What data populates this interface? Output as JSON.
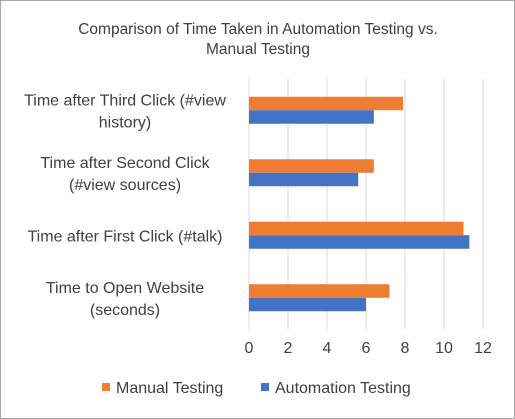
{
  "chart_data": {
    "type": "bar",
    "orientation": "horizontal",
    "title": "Comparison of Time Taken in Automation Testing vs. Manual Testing",
    "categories": [
      [
        "Time to Open Website",
        "(seconds)"
      ],
      [
        "Time after First Click (#talk)"
      ],
      [
        "Time after Second Click",
        "(#view sources)"
      ],
      [
        "Time after Third Click (#view",
        "history)"
      ]
    ],
    "series": [
      {
        "name": "Manual Testing",
        "color": "#ed7d31",
        "values": [
          7.2,
          11.0,
          6.4,
          7.9
        ]
      },
      {
        "name": "Automation Testing",
        "color": "#4472c4",
        "values": [
          6.0,
          11.3,
          5.6,
          6.4
        ]
      }
    ],
    "xlim": [
      0,
      12
    ],
    "xticks": [
      "0",
      "2",
      "4",
      "6",
      "8",
      "10",
      "12"
    ],
    "xlabel": "",
    "ylabel": "",
    "grid": "vertical",
    "legend_position": "bottom"
  }
}
